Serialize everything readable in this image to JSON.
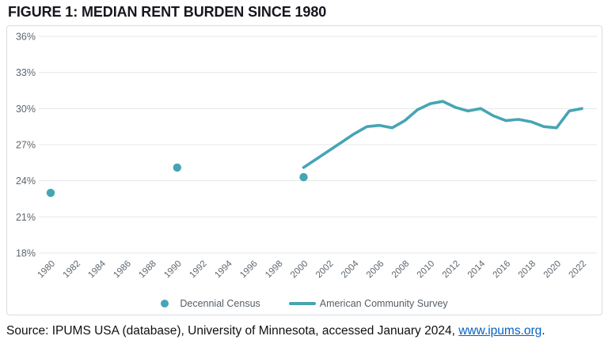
{
  "title": "FIGURE 1: MEDIAN RENT BURDEN SINCE 1980",
  "colors": {
    "accent_teal": "#46a5b4",
    "gridline": "#e5e7e9",
    "axis_label": "#5d6770",
    "card_border": "#d9dbdd",
    "title_text": "#16161f",
    "link_blue": "#0563c1"
  },
  "chart_data": {
    "type": "line",
    "title": "FIGURE 1: MEDIAN RENT BURDEN SINCE 1980",
    "xlabel": "",
    "ylabel": "",
    "grid": "horizontal",
    "legend_position": "bottom-center",
    "y_axis": {
      "range": [
        18,
        36
      ],
      "unit": "%",
      "ticks": [
        {
          "value": 36,
          "label": "36%"
        },
        {
          "value": 33,
          "label": "33%"
        },
        {
          "value": 30,
          "label": "30%"
        },
        {
          "value": 27,
          "label": "27%"
        },
        {
          "value": 24,
          "label": "24%"
        },
        {
          "value": 21,
          "label": "21%"
        },
        {
          "value": 18,
          "label": "18%"
        }
      ]
    },
    "x_axis": {
      "range": [
        1980,
        2022
      ],
      "ticks": [
        {
          "value": 1980,
          "label": "1980"
        },
        {
          "value": 1982,
          "label": "1982"
        },
        {
          "value": 1984,
          "label": "1984"
        },
        {
          "value": 1986,
          "label": "1986"
        },
        {
          "value": 1988,
          "label": "1988"
        },
        {
          "value": 1990,
          "label": "1990"
        },
        {
          "value": 1992,
          "label": "1992"
        },
        {
          "value": 1994,
          "label": "1994"
        },
        {
          "value": 1996,
          "label": "1996"
        },
        {
          "value": 1998,
          "label": "1998"
        },
        {
          "value": 2000,
          "label": "2000"
        },
        {
          "value": 2002,
          "label": "2002"
        },
        {
          "value": 2004,
          "label": "2004"
        },
        {
          "value": 2006,
          "label": "2006"
        },
        {
          "value": 2008,
          "label": "2008"
        },
        {
          "value": 2010,
          "label": "2010"
        },
        {
          "value": 2012,
          "label": "2012"
        },
        {
          "value": 2014,
          "label": "2014"
        },
        {
          "value": 2016,
          "label": "2016"
        },
        {
          "value": 2018,
          "label": "2018"
        },
        {
          "value": 2020,
          "label": "2020"
        },
        {
          "value": 2022,
          "label": "2022"
        }
      ]
    },
    "series": [
      {
        "name": "Decennial Census",
        "type": "scatter",
        "color": "#46a5b4",
        "points": [
          [
            1980,
            23.0
          ],
          [
            1990,
            25.1
          ],
          [
            2000,
            24.3
          ]
        ]
      },
      {
        "name": "American Community Survey",
        "type": "line",
        "color": "#46a5b4",
        "points": [
          [
            2000,
            25.1
          ],
          [
            2001,
            25.8
          ],
          [
            2002,
            26.5
          ],
          [
            2003,
            27.2
          ],
          [
            2004,
            27.9
          ],
          [
            2005,
            28.5
          ],
          [
            2006,
            28.6
          ],
          [
            2007,
            28.4
          ],
          [
            2008,
            29.0
          ],
          [
            2009,
            29.9
          ],
          [
            2010,
            30.4
          ],
          [
            2011,
            30.6
          ],
          [
            2012,
            30.1
          ],
          [
            2013,
            29.8
          ],
          [
            2014,
            30.0
          ],
          [
            2015,
            29.4
          ],
          [
            2016,
            29.0
          ],
          [
            2017,
            29.1
          ],
          [
            2018,
            28.9
          ],
          [
            2019,
            28.5
          ],
          [
            2020,
            28.4
          ],
          [
            2021,
            29.8
          ],
          [
            2022,
            30.0
          ]
        ]
      }
    ]
  },
  "source": {
    "prefix": "Source: IPUMS USA (database), University of Minnesota, accessed January 2024, ",
    "link_text": "www.ipums.org",
    "suffix": "."
  }
}
